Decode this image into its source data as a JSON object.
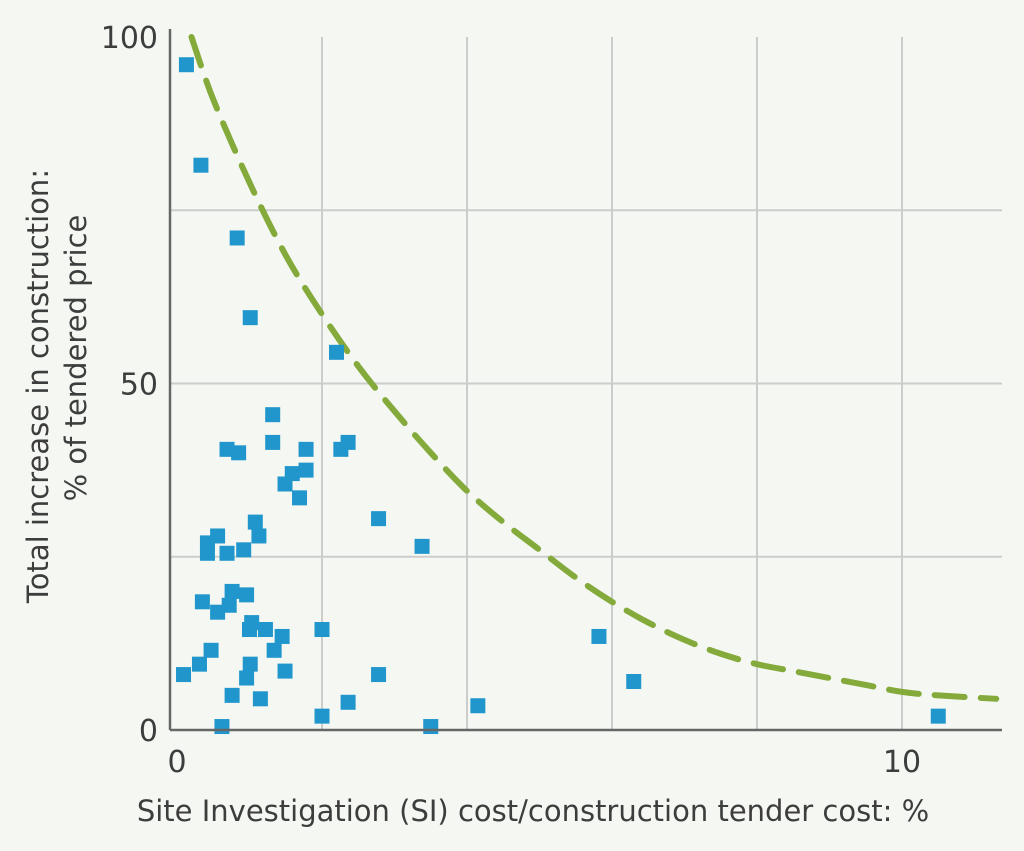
{
  "chart_data": {
    "type": "scatter",
    "title": "",
    "xlabel": "Site Investigation (SI) cost/construction tender cost: %",
    "ylabel_line1": "Total increase in construction:",
    "ylabel_line2": "% of tendered price",
    "xlim": [
      0,
      11.5
    ],
    "ylim": [
      0,
      100
    ],
    "x_ticks": [
      0,
      10
    ],
    "x_tick_labels": [
      "0",
      "10"
    ],
    "y_ticks": [
      0,
      50,
      100
    ],
    "y_tick_labels": [
      "0",
      "50",
      "100"
    ],
    "x_gridlines": [
      2,
      4,
      6,
      8,
      10
    ],
    "y_gridlines": [
      25,
      50,
      75
    ],
    "grid": true,
    "colors": {
      "points": "#2196cc",
      "curve": "#84aa3c",
      "axis": "#666666",
      "grid": "#cccccc",
      "background": "#f5f8f2"
    },
    "series": [
      {
        "name": "Projects",
        "points": [
          [
            0.13,
            96
          ],
          [
            0.33,
            81.5
          ],
          [
            0.83,
            71
          ],
          [
            1.01,
            59.5
          ],
          [
            2.2,
            54.5
          ],
          [
            1.32,
            45.5
          ],
          [
            0.69,
            40.5
          ],
          [
            0.85,
            40
          ],
          [
            1.32,
            41.5
          ],
          [
            1.78,
            40.5
          ],
          [
            2.26,
            40.5
          ],
          [
            2.36,
            41.5
          ],
          [
            1.78,
            37.5
          ],
          [
            1.59,
            37
          ],
          [
            1.49,
            35.5
          ],
          [
            1.69,
            33.5
          ],
          [
            2.78,
            30.5
          ],
          [
            3.38,
            26.5
          ],
          [
            1.08,
            30
          ],
          [
            1.13,
            28
          ],
          [
            0.56,
            28
          ],
          [
            0.42,
            27
          ],
          [
            0.42,
            25.5
          ],
          [
            0.69,
            25.5
          ],
          [
            0.92,
            26
          ],
          [
            0.76,
            20
          ],
          [
            0.96,
            19.5
          ],
          [
            0.35,
            18.5
          ],
          [
            0.72,
            18
          ],
          [
            0.56,
            17
          ],
          [
            1.03,
            15.5
          ],
          [
            1.22,
            14.5
          ],
          [
            1.0,
            14.5
          ],
          [
            1.45,
            13.5
          ],
          [
            2.0,
            14.5
          ],
          [
            0.47,
            11.5
          ],
          [
            1.34,
            11.5
          ],
          [
            0.31,
            9.5
          ],
          [
            1.01,
            9.5
          ],
          [
            1.49,
            8.5
          ],
          [
            0.09,
            8
          ],
          [
            0.96,
            7.5
          ],
          [
            2.78,
            8
          ],
          [
            0.76,
            5
          ],
          [
            1.15,
            4.5
          ],
          [
            0.62,
            0.5
          ],
          [
            2.0,
            2
          ],
          [
            2.36,
            4
          ],
          [
            3.5,
            0.5
          ],
          [
            4.15,
            3.5
          ],
          [
            5.82,
            13.5
          ],
          [
            6.3,
            7
          ],
          [
            10.5,
            2
          ]
        ]
      }
    ],
    "trend_curve": {
      "style": "dashed",
      "points": [
        [
          0.2,
          100
        ],
        [
          0.5,
          91
        ],
        [
          1.0,
          79
        ],
        [
          1.5,
          68.5
        ],
        [
          2.0,
          60
        ],
        [
          2.5,
          52.5
        ],
        [
          3.0,
          46
        ],
        [
          3.5,
          40
        ],
        [
          4.0,
          34.5
        ],
        [
          4.5,
          30
        ],
        [
          5.0,
          26
        ],
        [
          5.5,
          22
        ],
        [
          6.0,
          18.5
        ],
        [
          6.5,
          15.5
        ],
        [
          7.0,
          13
        ],
        [
          7.5,
          11
        ],
        [
          8.0,
          9.5
        ],
        [
          8.5,
          8.5
        ],
        [
          9.0,
          7.5
        ],
        [
          9.5,
          6.5
        ],
        [
          10.0,
          5.5
        ],
        [
          10.5,
          5
        ],
        [
          11.3,
          4.5
        ]
      ]
    }
  }
}
